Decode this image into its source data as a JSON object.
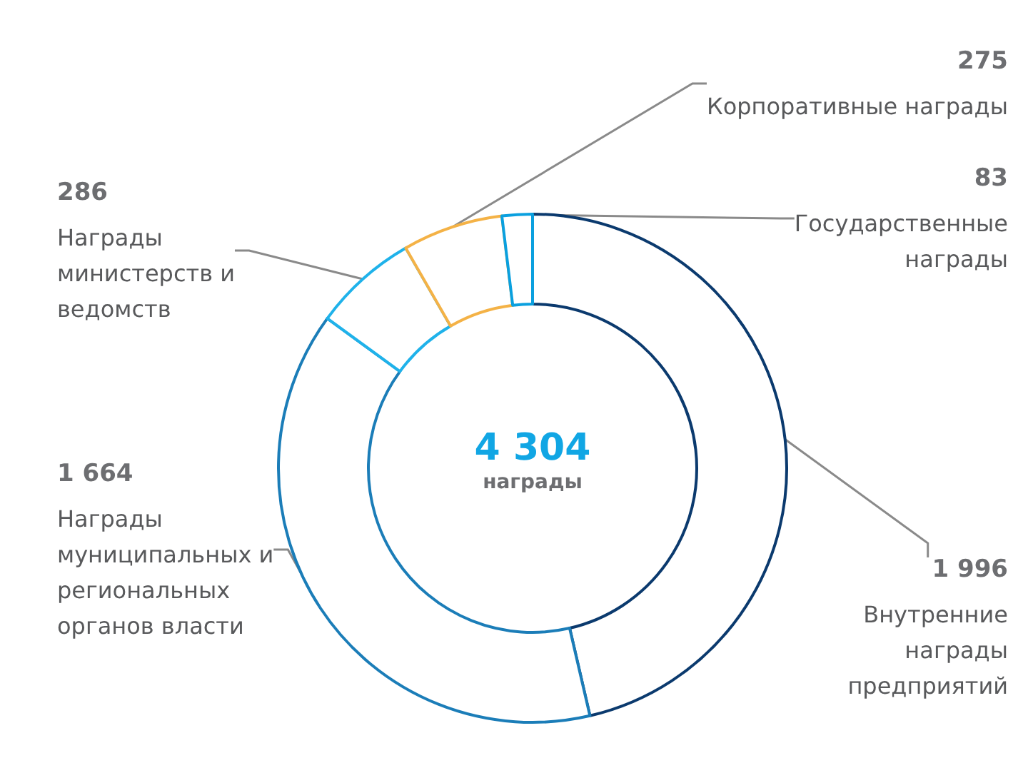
{
  "chart_data": {
    "type": "donut",
    "categories": [
      "Внутренние награды предприятий",
      "Награды муниципальных и региональных органов власти",
      "Награды министерств и ведомств",
      "Корпоративные награды",
      "Государственные награды"
    ],
    "values": [
      1996,
      1664,
      286,
      275,
      83
    ],
    "colors": [
      "#0b3a6e",
      "#1b7db8",
      "#1fb2ea",
      "#f4b246",
      "#0aa0df"
    ],
    "data_labels": true,
    "annotations": [
      "4 304",
      "награды"
    ],
    "legend": false
  }
}
